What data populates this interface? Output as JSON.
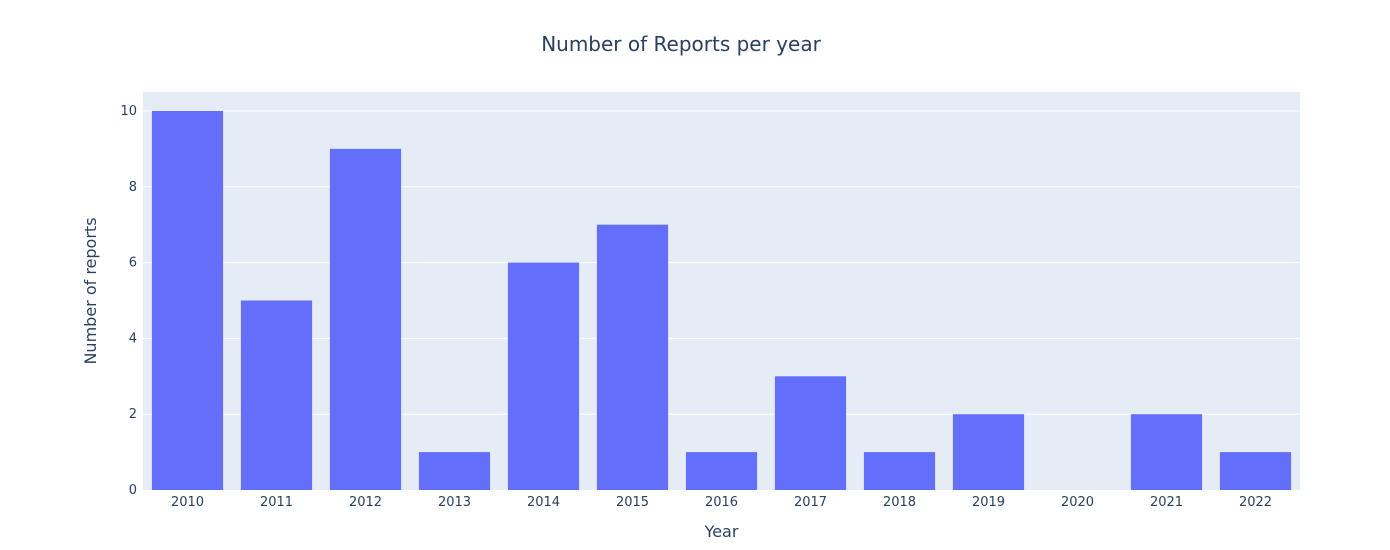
{
  "chart_data": {
    "type": "bar",
    "title": "Number of Reports per year",
    "xlabel": "Year",
    "ylabel": "Number of reports",
    "categories": [
      "2010",
      "2011",
      "2012",
      "2013",
      "2014",
      "2015",
      "2016",
      "2017",
      "2018",
      "2019",
      "2020",
      "2021",
      "2022"
    ],
    "values": [
      10,
      5,
      9,
      1,
      6,
      7,
      1,
      3,
      1,
      2,
      0,
      2,
      1
    ],
    "ylim": [
      0,
      10.5
    ],
    "yticks": [
      0,
      2,
      4,
      6,
      8,
      10
    ],
    "grid": true,
    "colors": {
      "bar": "#636efa",
      "plot_background": "#e5ecf6",
      "gridline": "#ffffff",
      "text": "#2a3f5f"
    }
  }
}
